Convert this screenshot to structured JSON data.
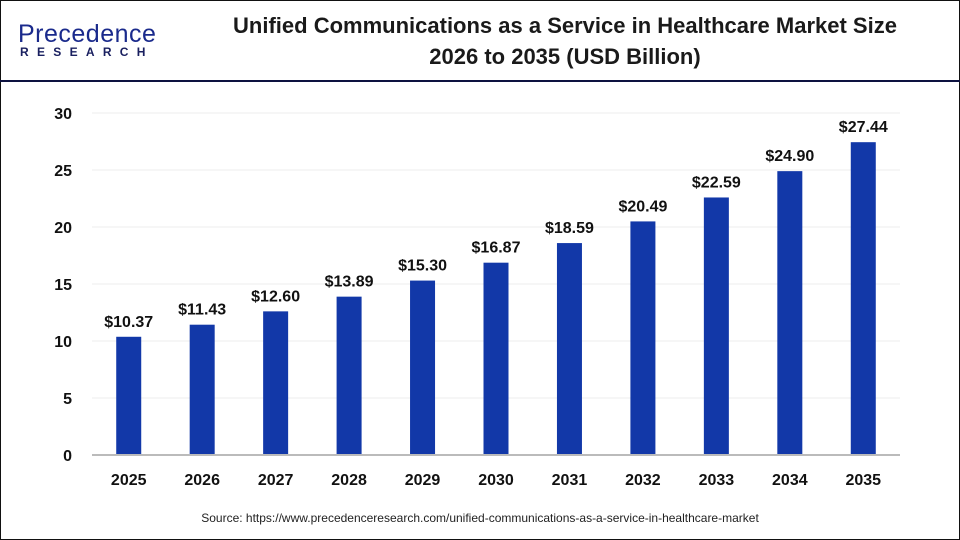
{
  "logo": {
    "line1": "Precedence",
    "line2": "RESEARCH"
  },
  "title_line1": "Unified Communications as a Service in Healthcare Market Size",
  "title_line2": "2026 to 2035 (USD Billion)",
  "source": "Source: https://www.precedenceresearch.com/unified-communications-as-a-service-in-healthcare-market",
  "chart_data": {
    "type": "bar",
    "title": "Unified Communications as a Service in Healthcare Market Size 2026 to 2035 (USD Billion)",
    "categories": [
      "2025",
      "2026",
      "2027",
      "2028",
      "2029",
      "2030",
      "2031",
      "2032",
      "2033",
      "2034",
      "2035"
    ],
    "values": [
      10.37,
      11.43,
      12.6,
      13.89,
      15.3,
      16.87,
      18.59,
      20.49,
      22.59,
      24.9,
      27.44
    ],
    "data_labels": [
      "$10.37",
      "$11.43",
      "$12.60",
      "$13.89",
      "$15.30",
      "$16.87",
      "$18.59",
      "$20.49",
      "$22.59",
      "$24.90",
      "$27.44"
    ],
    "xlabel": "",
    "ylabel": "",
    "ylim": [
      0,
      30
    ],
    "yticks": [
      0,
      5,
      10,
      15,
      20,
      25,
      30
    ],
    "grid": true,
    "bar_color": "#1238a8"
  }
}
